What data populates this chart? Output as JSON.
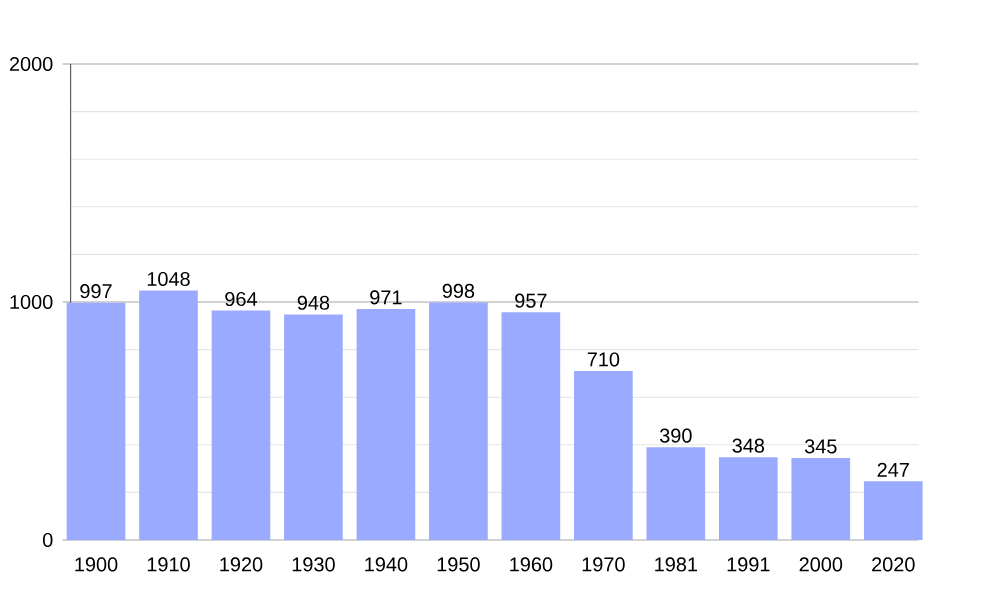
{
  "chart_data": {
    "type": "bar",
    "categories": [
      "1900",
      "1910",
      "1920",
      "1930",
      "1940",
      "1950",
      "1960",
      "1970",
      "1981",
      "1991",
      "2000",
      "2020"
    ],
    "values": [
      997,
      1048,
      964,
      948,
      971,
      998,
      957,
      710,
      390,
      348,
      345,
      247
    ],
    "color": "#99aaff",
    "ylim": [
      0,
      2000
    ],
    "yticks": [
      0,
      1000,
      2000
    ],
    "grid": "y",
    "data_labels": true
  }
}
